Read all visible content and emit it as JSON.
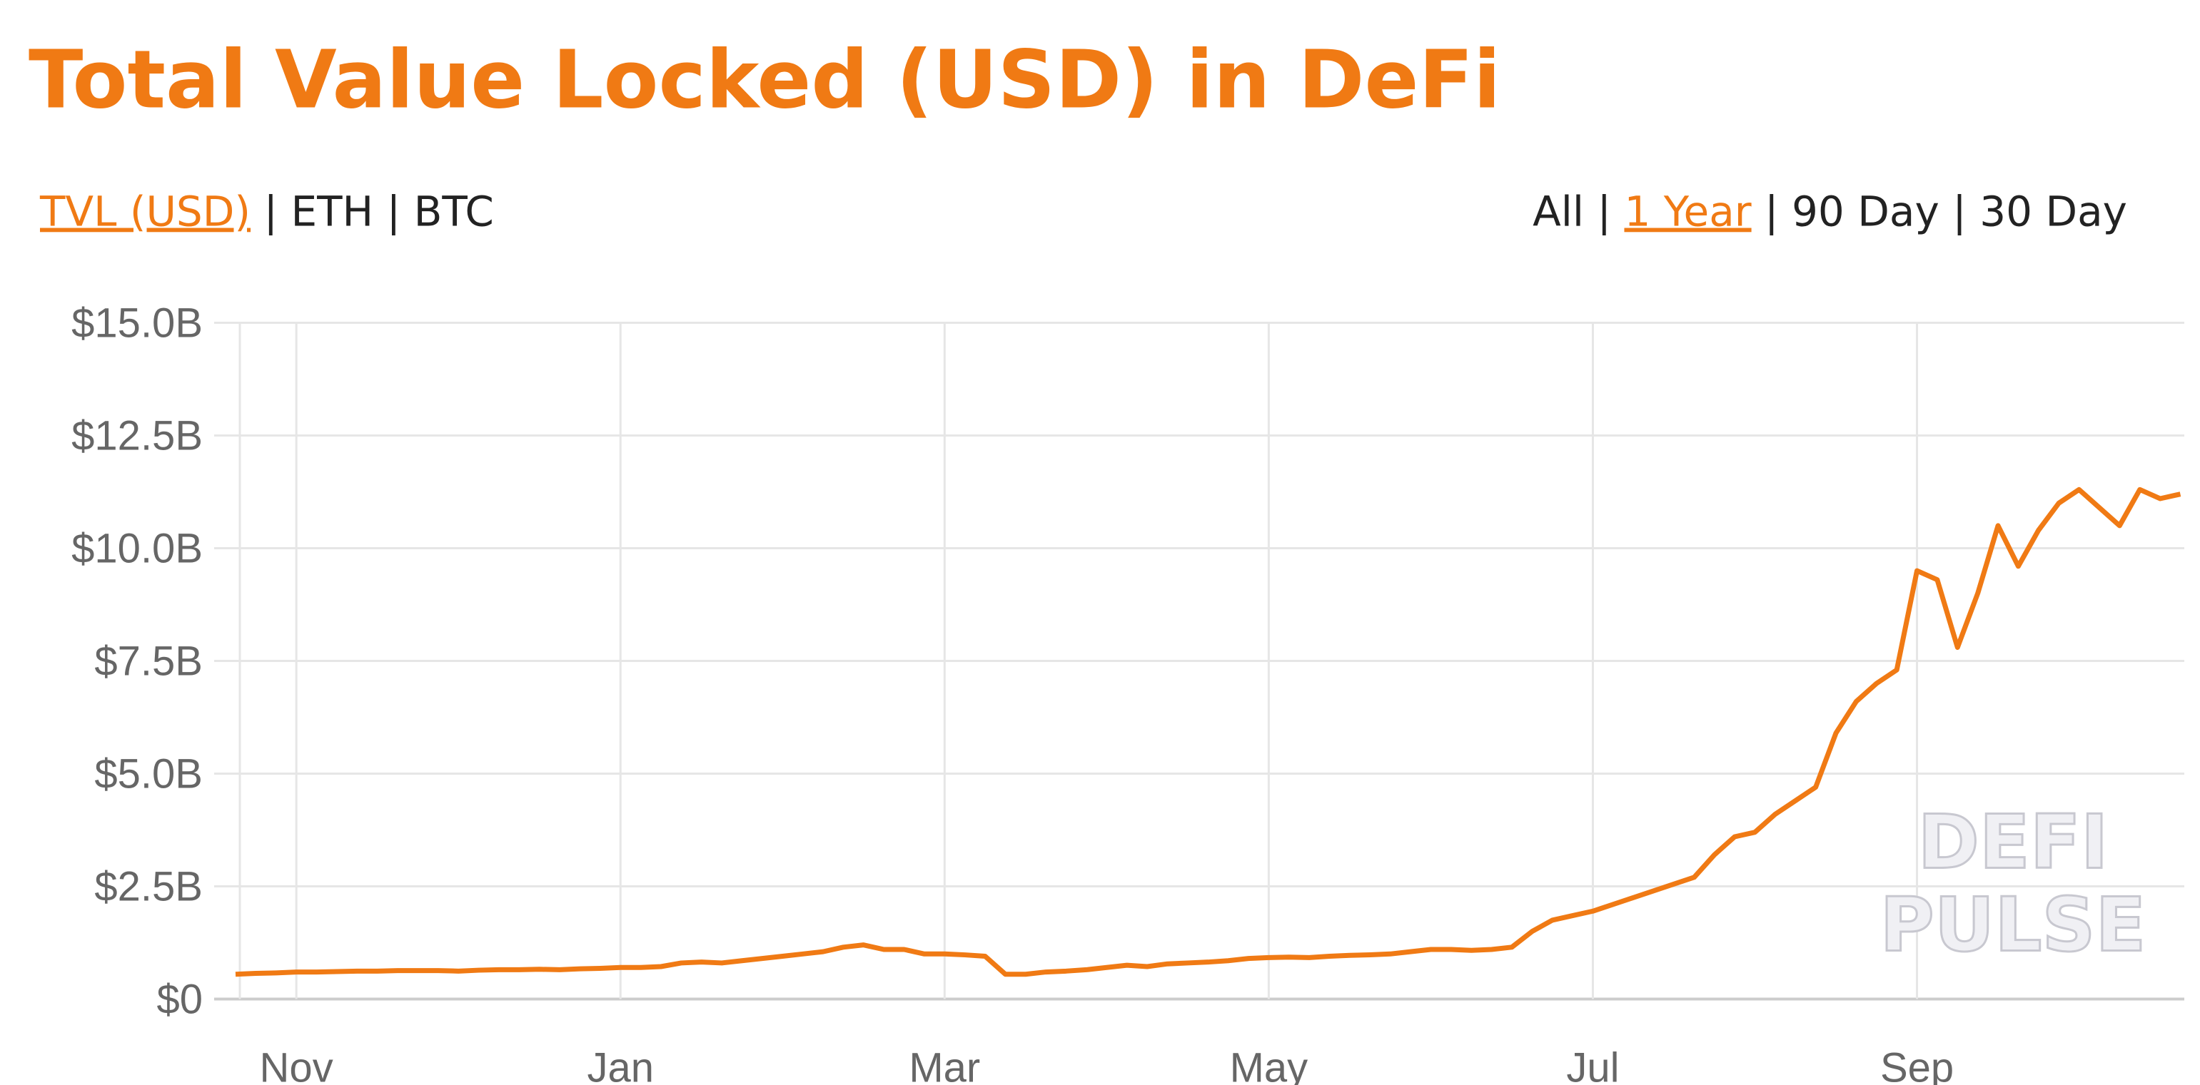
{
  "title": "Total Value Locked (USD) in DeFi",
  "metric_options": [
    "TVL (USD)",
    "ETH",
    "BTC"
  ],
  "selected_metric_index": 0,
  "range_options": [
    "All",
    "1 Year",
    "90 Day",
    "30 Day"
  ],
  "selected_range_index": 1,
  "chart_data": {
    "type": "line",
    "categories": [
      null,
      null,
      null,
      "Nov",
      null,
      null,
      null,
      null,
      null,
      null,
      null,
      null,
      null,
      null,
      null,
      null,
      null,
      null,
      null,
      "Jan",
      null,
      null,
      null,
      null,
      null,
      null,
      null,
      null,
      null,
      null,
      null,
      null,
      null,
      null,
      null,
      "Mar",
      null,
      null,
      null,
      null,
      null,
      null,
      null,
      null,
      null,
      null,
      null,
      null,
      null,
      null,
      null,
      "May",
      null,
      null,
      null,
      null,
      null,
      null,
      null,
      null,
      null,
      null,
      null,
      null,
      null,
      null,
      null,
      "Jul",
      null,
      null,
      null,
      null,
      null,
      null,
      null,
      null,
      null,
      null,
      null,
      null,
      null,
      null,
      null,
      "Sep",
      null,
      null,
      null,
      null,
      null,
      null,
      null,
      null,
      null,
      null,
      null,
      null,
      null
    ],
    "series": [
      {
        "name": "TVL (USD)",
        "color": "#f07a14",
        "values": [
          0.55,
          0.57,
          0.58,
          0.6,
          0.6,
          0.61,
          0.62,
          0.62,
          0.63,
          0.63,
          0.63,
          0.62,
          0.64,
          0.65,
          0.65,
          0.66,
          0.65,
          0.67,
          0.68,
          0.7,
          0.7,
          0.72,
          0.8,
          0.82,
          0.8,
          0.85,
          0.9,
          0.95,
          1.0,
          1.05,
          1.15,
          1.2,
          1.1,
          1.1,
          1.0,
          1.0,
          0.98,
          0.95,
          0.55,
          0.55,
          0.6,
          0.62,
          0.65,
          0.7,
          0.75,
          0.72,
          0.78,
          0.8,
          0.82,
          0.85,
          0.9,
          0.92,
          0.93,
          0.92,
          0.95,
          0.97,
          0.98,
          1.0,
          1.05,
          1.1,
          1.1,
          1.08,
          1.1,
          1.15,
          1.5,
          1.75,
          1.85,
          1.95,
          2.1,
          2.25,
          2.4,
          2.55,
          2.7,
          3.2,
          3.6,
          3.7,
          4.1,
          4.4,
          4.7,
          5.9,
          6.6,
          7.0,
          7.3,
          9.5,
          9.3,
          7.8,
          9.0,
          10.5,
          9.6,
          10.4,
          11.0,
          11.3,
          10.9,
          10.5,
          11.3,
          11.1,
          11.2
        ]
      }
    ],
    "ylim": [
      0,
      15
    ],
    "yticks": [
      {
        "value": 0,
        "label": "$0"
      },
      {
        "value": 2.5,
        "label": "$2.5B"
      },
      {
        "value": 5,
        "label": "$5.0B"
      },
      {
        "value": 7.5,
        "label": "$7.5B"
      },
      {
        "value": 10,
        "label": "$10.0B"
      },
      {
        "value": 12.5,
        "label": "$12.5B"
      },
      {
        "value": 15,
        "label": "$15.0B"
      }
    ],
    "grid": true,
    "watermark": [
      "DEFI",
      "PULSE"
    ]
  }
}
